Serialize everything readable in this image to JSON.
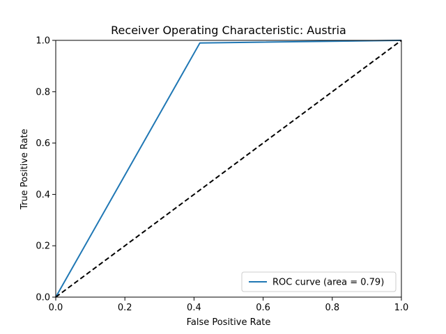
{
  "chart_data": {
    "type": "line",
    "title": "Receiver Operating Characteristic: Austria",
    "xlabel": "False Positive Rate",
    "ylabel": "True Positive Rate",
    "xlim": [
      0.0,
      1.0
    ],
    "ylim": [
      0.0,
      1.0
    ],
    "xticks": [
      "0.0",
      "0.2",
      "0.4",
      "0.6",
      "0.8",
      "1.0"
    ],
    "yticks": [
      "0.0",
      "0.2",
      "0.4",
      "0.6",
      "0.8",
      "1.0"
    ],
    "grid": false,
    "legend_position": "lower-right",
    "series": [
      {
        "name": "ROC curve (area = 0.79)",
        "color": "#1f77b4",
        "style": "solid",
        "x": [
          0.0,
          0.417,
          1.0
        ],
        "y": [
          0.0,
          0.99,
          1.0
        ]
      },
      {
        "color": "#000000",
        "style": "dashed",
        "x": [
          0.0,
          1.0
        ],
        "y": [
          0.0,
          1.0
        ]
      }
    ]
  }
}
